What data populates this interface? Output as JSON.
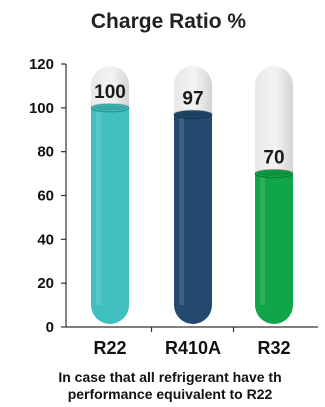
{
  "chart_data": {
    "type": "bar",
    "title": "Charge Ratio %",
    "categories": [
      "R22",
      "R410A",
      "R32"
    ],
    "values": [
      100,
      97,
      70
    ],
    "data_labels": [
      "100",
      "97",
      "70"
    ],
    "ylim": [
      0,
      120
    ],
    "yticks": [
      0,
      20,
      40,
      60,
      80,
      100,
      120
    ],
    "ytick_labels": [
      "0",
      "20",
      "40",
      "60",
      "80",
      "100",
      "120"
    ],
    "xlabel": "",
    "ylabel": "",
    "grid": false,
    "colors": [
      "#3fbfbf",
      "#23496e",
      "#0fa548"
    ],
    "track_color": "#e3e3e3"
  },
  "caption": {
    "line1": "In case that all refrigerant have th",
    "line2": "performance equivalent to R22"
  }
}
